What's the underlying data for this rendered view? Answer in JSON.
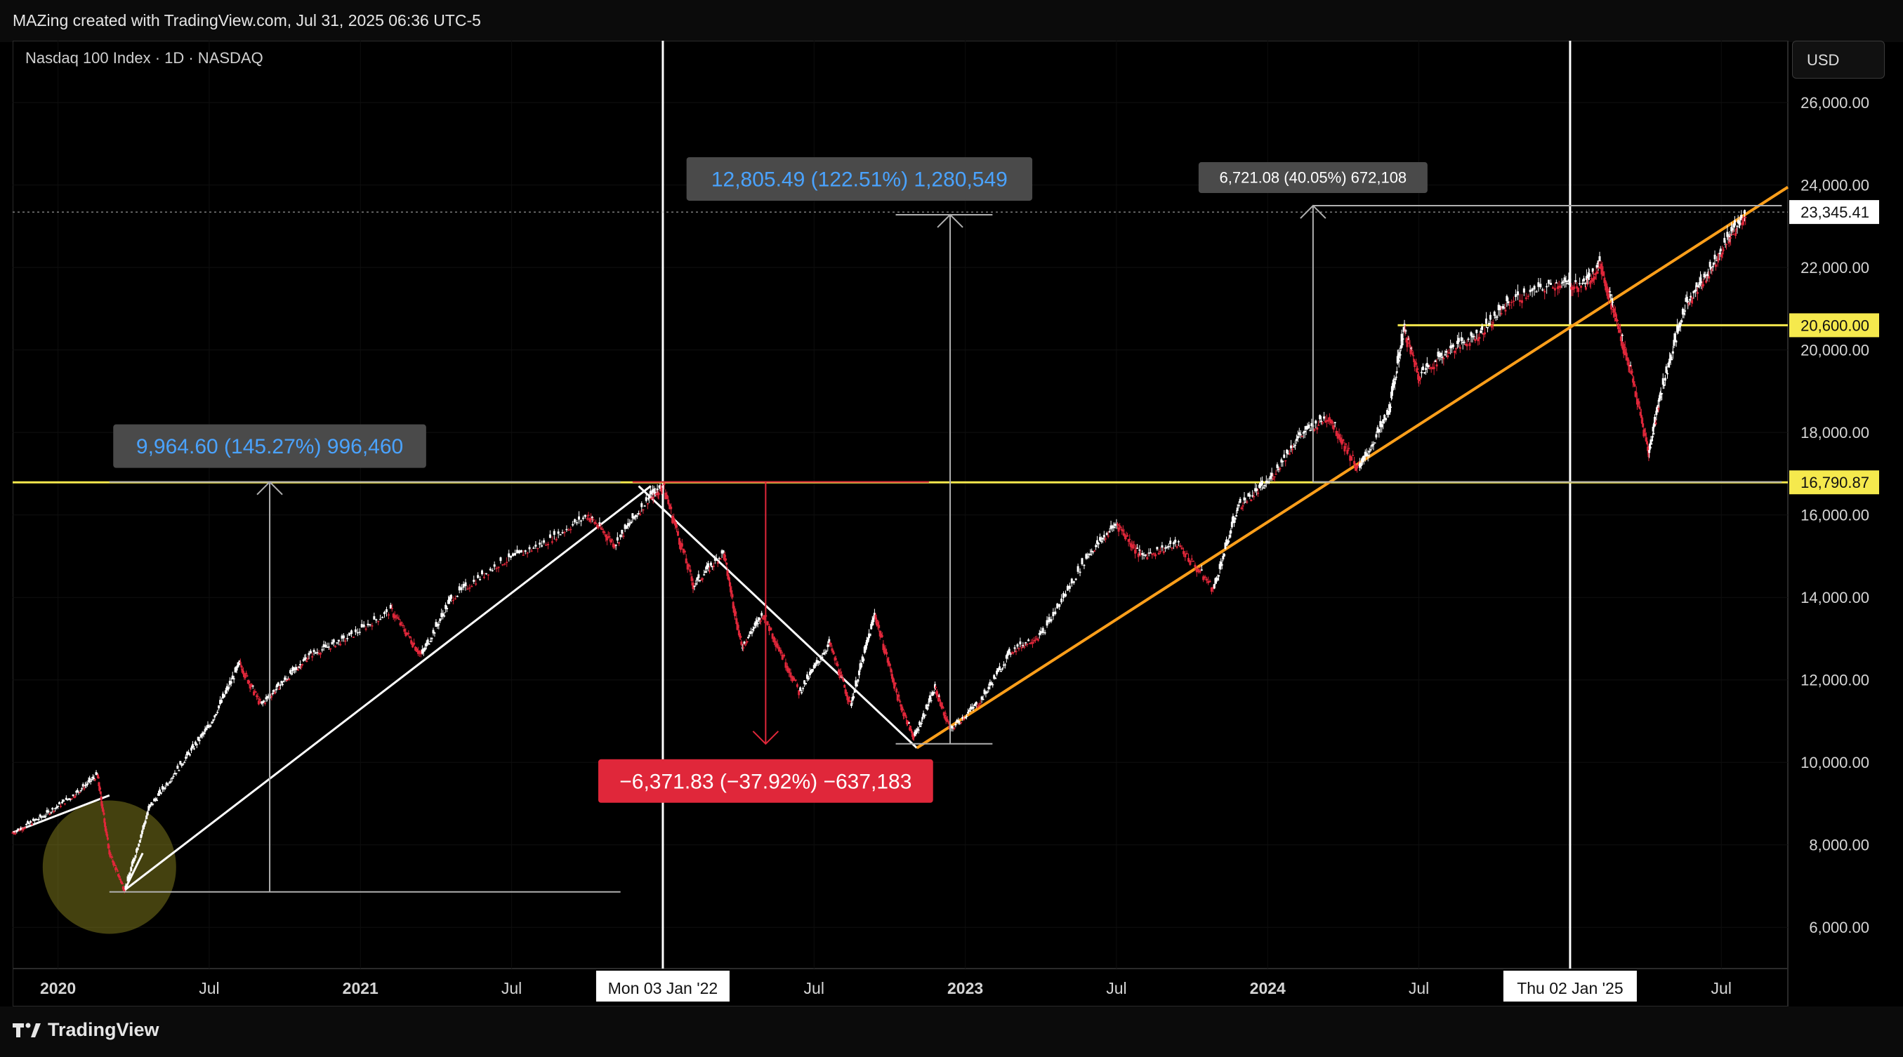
{
  "header": {
    "attribution": "MAZing created with TradingView.com, Jul 31, 2025 06:36 UTC-5"
  },
  "symbol_info": "Nasdaq 100 Index · 1D · NASDAQ",
  "currency_button": "USD",
  "branding": {
    "logo_text": "TradingView"
  },
  "colors": {
    "background": "#000000",
    "yellow_level": "#f5e94d",
    "orange_trend": "#ff9f1a",
    "white_line": "#ffffff",
    "grey_measure": "#b0b0b0",
    "blue_text": "#4aa3ff",
    "red_measure": "#e0273a",
    "candle_up": "#ffffff",
    "candle_down": "#e0273a"
  },
  "chart_data": {
    "type": "line",
    "title": "Nasdaq 100 Index · 1D · NASDAQ",
    "ylim": [
      5000,
      27500
    ],
    "y_ticks": [
      {
        "value": 6000,
        "label": "6,000.00"
      },
      {
        "value": 8000,
        "label": "8,000.00"
      },
      {
        "value": 10000,
        "label": "10,000.00"
      },
      {
        "value": 12000,
        "label": "12,000.00"
      },
      {
        "value": 14000,
        "label": "14,000.00"
      },
      {
        "value": 16000,
        "label": "16,000.00"
      },
      {
        "value": 18000,
        "label": "18,000.00"
      },
      {
        "value": 20000,
        "label": "20,000.00"
      },
      {
        "value": 22000,
        "label": "22,000.00"
      },
      {
        "value": 24000,
        "label": "24,000.00"
      },
      {
        "value": 26000,
        "label": "26,000.00"
      }
    ],
    "x_range": [
      2019.85,
      2025.72
    ],
    "x_ticks": [
      {
        "value": 2020.0,
        "label": "2020",
        "bold": true
      },
      {
        "value": 2020.5,
        "label": "Jul",
        "bold": false
      },
      {
        "value": 2021.0,
        "label": "2021",
        "bold": true
      },
      {
        "value": 2021.5,
        "label": "Jul",
        "bold": false
      },
      {
        "value": 2022.5,
        "label": "Jul",
        "bold": false
      },
      {
        "value": 2023.0,
        "label": "2023",
        "bold": true
      },
      {
        "value": 2023.5,
        "label": "Jul",
        "bold": false
      },
      {
        "value": 2024.0,
        "label": "2024",
        "bold": true
      },
      {
        "value": 2024.5,
        "label": "Jul",
        "bold": false
      },
      {
        "value": 2025.5,
        "label": "Jul",
        "bold": false
      }
    ],
    "series": [
      {
        "name": "Nasdaq 100 Index close",
        "x": [
          2019.85,
          2019.95,
          2020.05,
          2020.13,
          2020.17,
          2020.22,
          2020.3,
          2020.4,
          2020.5,
          2020.6,
          2020.67,
          2020.75,
          2020.83,
          2020.95,
          2021.1,
          2021.2,
          2021.3,
          2021.45,
          2021.6,
          2021.75,
          2021.84,
          2021.95,
          2022.0,
          2022.1,
          2022.2,
          2022.26,
          2022.33,
          2022.45,
          2022.55,
          2022.62,
          2022.7,
          2022.78,
          2022.83,
          2022.9,
          2022.95,
          2023.05,
          2023.15,
          2023.25,
          2023.4,
          2023.5,
          2023.58,
          2023.7,
          2023.82,
          2023.9,
          2024.0,
          2024.1,
          2024.2,
          2024.3,
          2024.4,
          2024.45,
          2024.5,
          2024.6,
          2024.7,
          2024.8,
          2024.95,
          2025.05,
          2025.1,
          2025.15,
          2025.2,
          2025.26,
          2025.3,
          2025.38,
          2025.45,
          2025.52,
          2025.58
        ],
        "y": [
          8300,
          8700,
          9200,
          9700,
          7800,
          6900,
          8900,
          9900,
          10900,
          12400,
          11400,
          12000,
          12600,
          13000,
          13700,
          12600,
          14000,
          14800,
          15300,
          16000,
          15300,
          16400,
          16700,
          14300,
          15100,
          12800,
          13600,
          11700,
          12900,
          11400,
          13600,
          11500,
          10600,
          11800,
          10800,
          11500,
          12700,
          13100,
          15000,
          15800,
          15000,
          15300,
          14200,
          16200,
          16800,
          17900,
          18400,
          17100,
          18500,
          20500,
          19400,
          20000,
          20400,
          21200,
          21600,
          21600,
          22100,
          20800,
          19500,
          17500,
          19000,
          21100,
          21800,
          22700,
          23300
        ]
      }
    ],
    "annotations": {
      "horizontal_levels": [
        {
          "value": 16790.87,
          "label": "16,790.87",
          "color": "yellow"
        },
        {
          "value": 20600.0,
          "label": "20,600.00",
          "color": "yellow"
        },
        {
          "value": 23345.41,
          "label": "23,345.41",
          "color": "white",
          "note": "last price"
        }
      ],
      "vertical_markers": [
        {
          "value": 2022.0,
          "label": "Mon 03 Jan '22"
        },
        {
          "value": 2025.0,
          "label": "Thu 02 Jan '25"
        }
      ],
      "measures": [
        {
          "label": "9,964.60 (145.27%) 996,460",
          "from": 6860,
          "to": 16800,
          "color": "grey"
        },
        {
          "label": "12,805.49 (122.51%) 1,280,549",
          "from": 10450,
          "to": 23280,
          "color": "grey"
        },
        {
          "label": "6,721.08 (40.05%) 672,108",
          "from": 16800,
          "to": 23500,
          "color": "grey"
        },
        {
          "label": "−6,371.83 (−37.92%) −637,183",
          "from": 16800,
          "to": 10450,
          "color": "red"
        }
      ],
      "trendlines": [
        {
          "name": "pre-covid trend",
          "x": [
            2019.85,
            2020.17
          ],
          "y": [
            8300,
            9200
          ],
          "color": "white"
        },
        {
          "name": "covid rebound",
          "x": [
            2020.22,
            2020.28
          ],
          "y": [
            6900,
            7800
          ],
          "color": "white"
        },
        {
          "name": "2020-2021 uptrend",
          "x": [
            2020.22,
            2021.96
          ],
          "y": [
            6900,
            16700
          ],
          "color": "white"
        },
        {
          "name": "2022 downtrend",
          "x": [
            2021.92,
            2022.84
          ],
          "y": [
            16700,
            10350
          ],
          "color": "white"
        },
        {
          "name": "2022-2025 uptrend",
          "x": [
            2022.84,
            2025.72
          ],
          "y": [
            10350,
            23950
          ],
          "color": "orange"
        }
      ],
      "highlight_circle": {
        "x": 2020.17,
        "y": 7800,
        "note": "covid crash low"
      }
    }
  }
}
